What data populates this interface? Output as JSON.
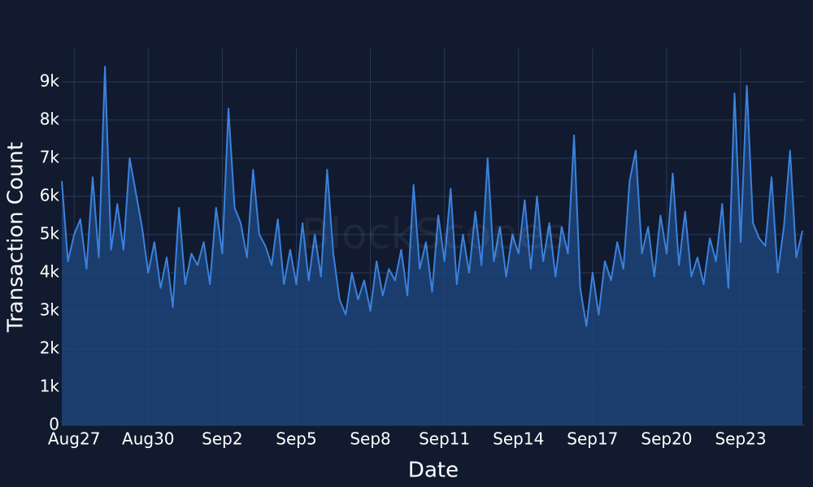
{
  "chart_data": {
    "type": "area",
    "watermark": "BlockScopes",
    "x_label": "Date",
    "y_label": "Transaction Count",
    "x": [
      -0.5,
      -0.25,
      0,
      0.25,
      0.5,
      0.75,
      1,
      1.25,
      1.5,
      1.75,
      2,
      2.25,
      2.5,
      2.75,
      3,
      3.25,
      3.5,
      3.75,
      4,
      4.25,
      4.5,
      4.75,
      5,
      5.25,
      5.5,
      5.75,
      6,
      6.25,
      6.5,
      6.75,
      7,
      7.25,
      7.5,
      7.75,
      8,
      8.25,
      8.5,
      8.75,
      9,
      9.25,
      9.5,
      9.75,
      10,
      10.25,
      10.5,
      10.75,
      11,
      11.25,
      11.5,
      11.75,
      12,
      12.25,
      12.5,
      12.75,
      13,
      13.25,
      13.5,
      13.75,
      14,
      14.25,
      14.5,
      14.75,
      15,
      15.25,
      15.5,
      15.75,
      16,
      16.25,
      16.5,
      16.75,
      17,
      17.25,
      17.5,
      17.75,
      18,
      18.25,
      18.5,
      18.75,
      19,
      19.25,
      19.5,
      19.75,
      20,
      20.25,
      20.5,
      20.75,
      21,
      21.25,
      21.5,
      21.75,
      22,
      22.25,
      22.5,
      22.75,
      23,
      23.25,
      23.5,
      23.75,
      24,
      24.25,
      24.5,
      24.75,
      25,
      25.25,
      25.5,
      25.75,
      26,
      26.25,
      26.5,
      26.75,
      27,
      27.25,
      27.5,
      27.75,
      28,
      28.25,
      28.5,
      28.75,
      29,
      29.25,
      29.5
    ],
    "series": [
      {
        "name": "Transaction Count",
        "color": "#3a82dc",
        "fill": "#1d4478",
        "values": [
          6400,
          4300,
          5000,
          5400,
          4100,
          6500,
          4400,
          9400,
          4600,
          5800,
          4600,
          7000,
          6100,
          5200,
          4000,
          4800,
          3600,
          4400,
          3100,
          5700,
          3700,
          4500,
          4200,
          4800,
          3700,
          5700,
          4500,
          8300,
          5700,
          5300,
          4400,
          6700,
          5000,
          4700,
          4200,
          5400,
          3700,
          4600,
          3700,
          5300,
          3800,
          5000,
          3900,
          6700,
          4500,
          3300,
          2900,
          4000,
          3300,
          3800,
          3000,
          4300,
          3400,
          4100,
          3800,
          4600,
          3400,
          6300,
          4100,
          4800,
          3500,
          5500,
          4300,
          6200,
          3700,
          5000,
          4000,
          5600,
          4200,
          7000,
          4300,
          5200,
          3900,
          5000,
          4500,
          5900,
          4100,
          6000,
          4300,
          5300,
          3900,
          5200,
          4500,
          7600,
          3600,
          2600,
          4000,
          2900,
          4300,
          3800,
          4800,
          4100,
          6400,
          7200,
          4500,
          5200,
          3900,
          5500,
          4500,
          6600,
          4200,
          5600,
          3900,
          4400,
          3700,
          4900,
          4300,
          5800,
          3600,
          8700,
          4800,
          8900,
          5300,
          4900,
          4700,
          6500,
          4000,
          5200,
          7200,
          4400,
          5100
        ]
      }
    ],
    "xlim": [
      -0.5,
      29.6
    ],
    "xticks": [
      {
        "value": 0,
        "label": "Aug27"
      },
      {
        "value": 3,
        "label": "Aug30"
      },
      {
        "value": 6,
        "label": "Sep2"
      },
      {
        "value": 9,
        "label": "Sep5"
      },
      {
        "value": 12,
        "label": "Sep8"
      },
      {
        "value": 15,
        "label": "Sep11"
      },
      {
        "value": 18,
        "label": "Sep14"
      },
      {
        "value": 21,
        "label": "Sep17"
      },
      {
        "value": 24,
        "label": "Sep20"
      },
      {
        "value": 27,
        "label": "Sep23"
      }
    ],
    "ylim": [
      0,
      9870
    ],
    "yticks": [
      0,
      {
        "value": 1000,
        "label": "1k"
      },
      {
        "value": 2000,
        "label": "2k"
      },
      {
        "value": 3000,
        "label": "3k"
      },
      {
        "value": 4000,
        "label": "4k"
      },
      {
        "value": 5000,
        "label": "5k"
      },
      {
        "value": 6000,
        "label": "6k"
      },
      {
        "value": 7000,
        "label": "7k"
      },
      {
        "value": 8000,
        "label": "8k"
      },
      {
        "value": 9000,
        "label": "9k"
      }
    ],
    "grid": true
  }
}
